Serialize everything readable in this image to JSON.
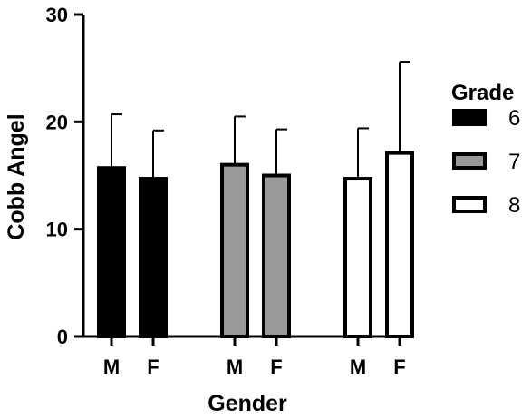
{
  "chart_data": {
    "type": "bar",
    "xlabel": "Gender",
    "ylabel": "Cobb Angel",
    "ylim": [
      0,
      30
    ],
    "yticks": [
      "0",
      "10",
      "20",
      "30"
    ],
    "categories": [
      "M",
      "F"
    ],
    "legend": {
      "title": "Grade",
      "position": "right"
    },
    "series": [
      {
        "name": "6",
        "color": "#000000",
        "values": [
          15.7,
          14.7
        ],
        "errors": [
          5.0,
          4.5
        ]
      },
      {
        "name": "7",
        "color": "#999999",
        "values": [
          16.0,
          15.0
        ],
        "errors": [
          4.5,
          4.3
        ]
      },
      {
        "name": "8",
        "color": "#ffffff",
        "values": [
          14.7,
          17.1
        ],
        "errors": [
          4.7,
          8.5
        ]
      }
    ],
    "grid": false
  }
}
